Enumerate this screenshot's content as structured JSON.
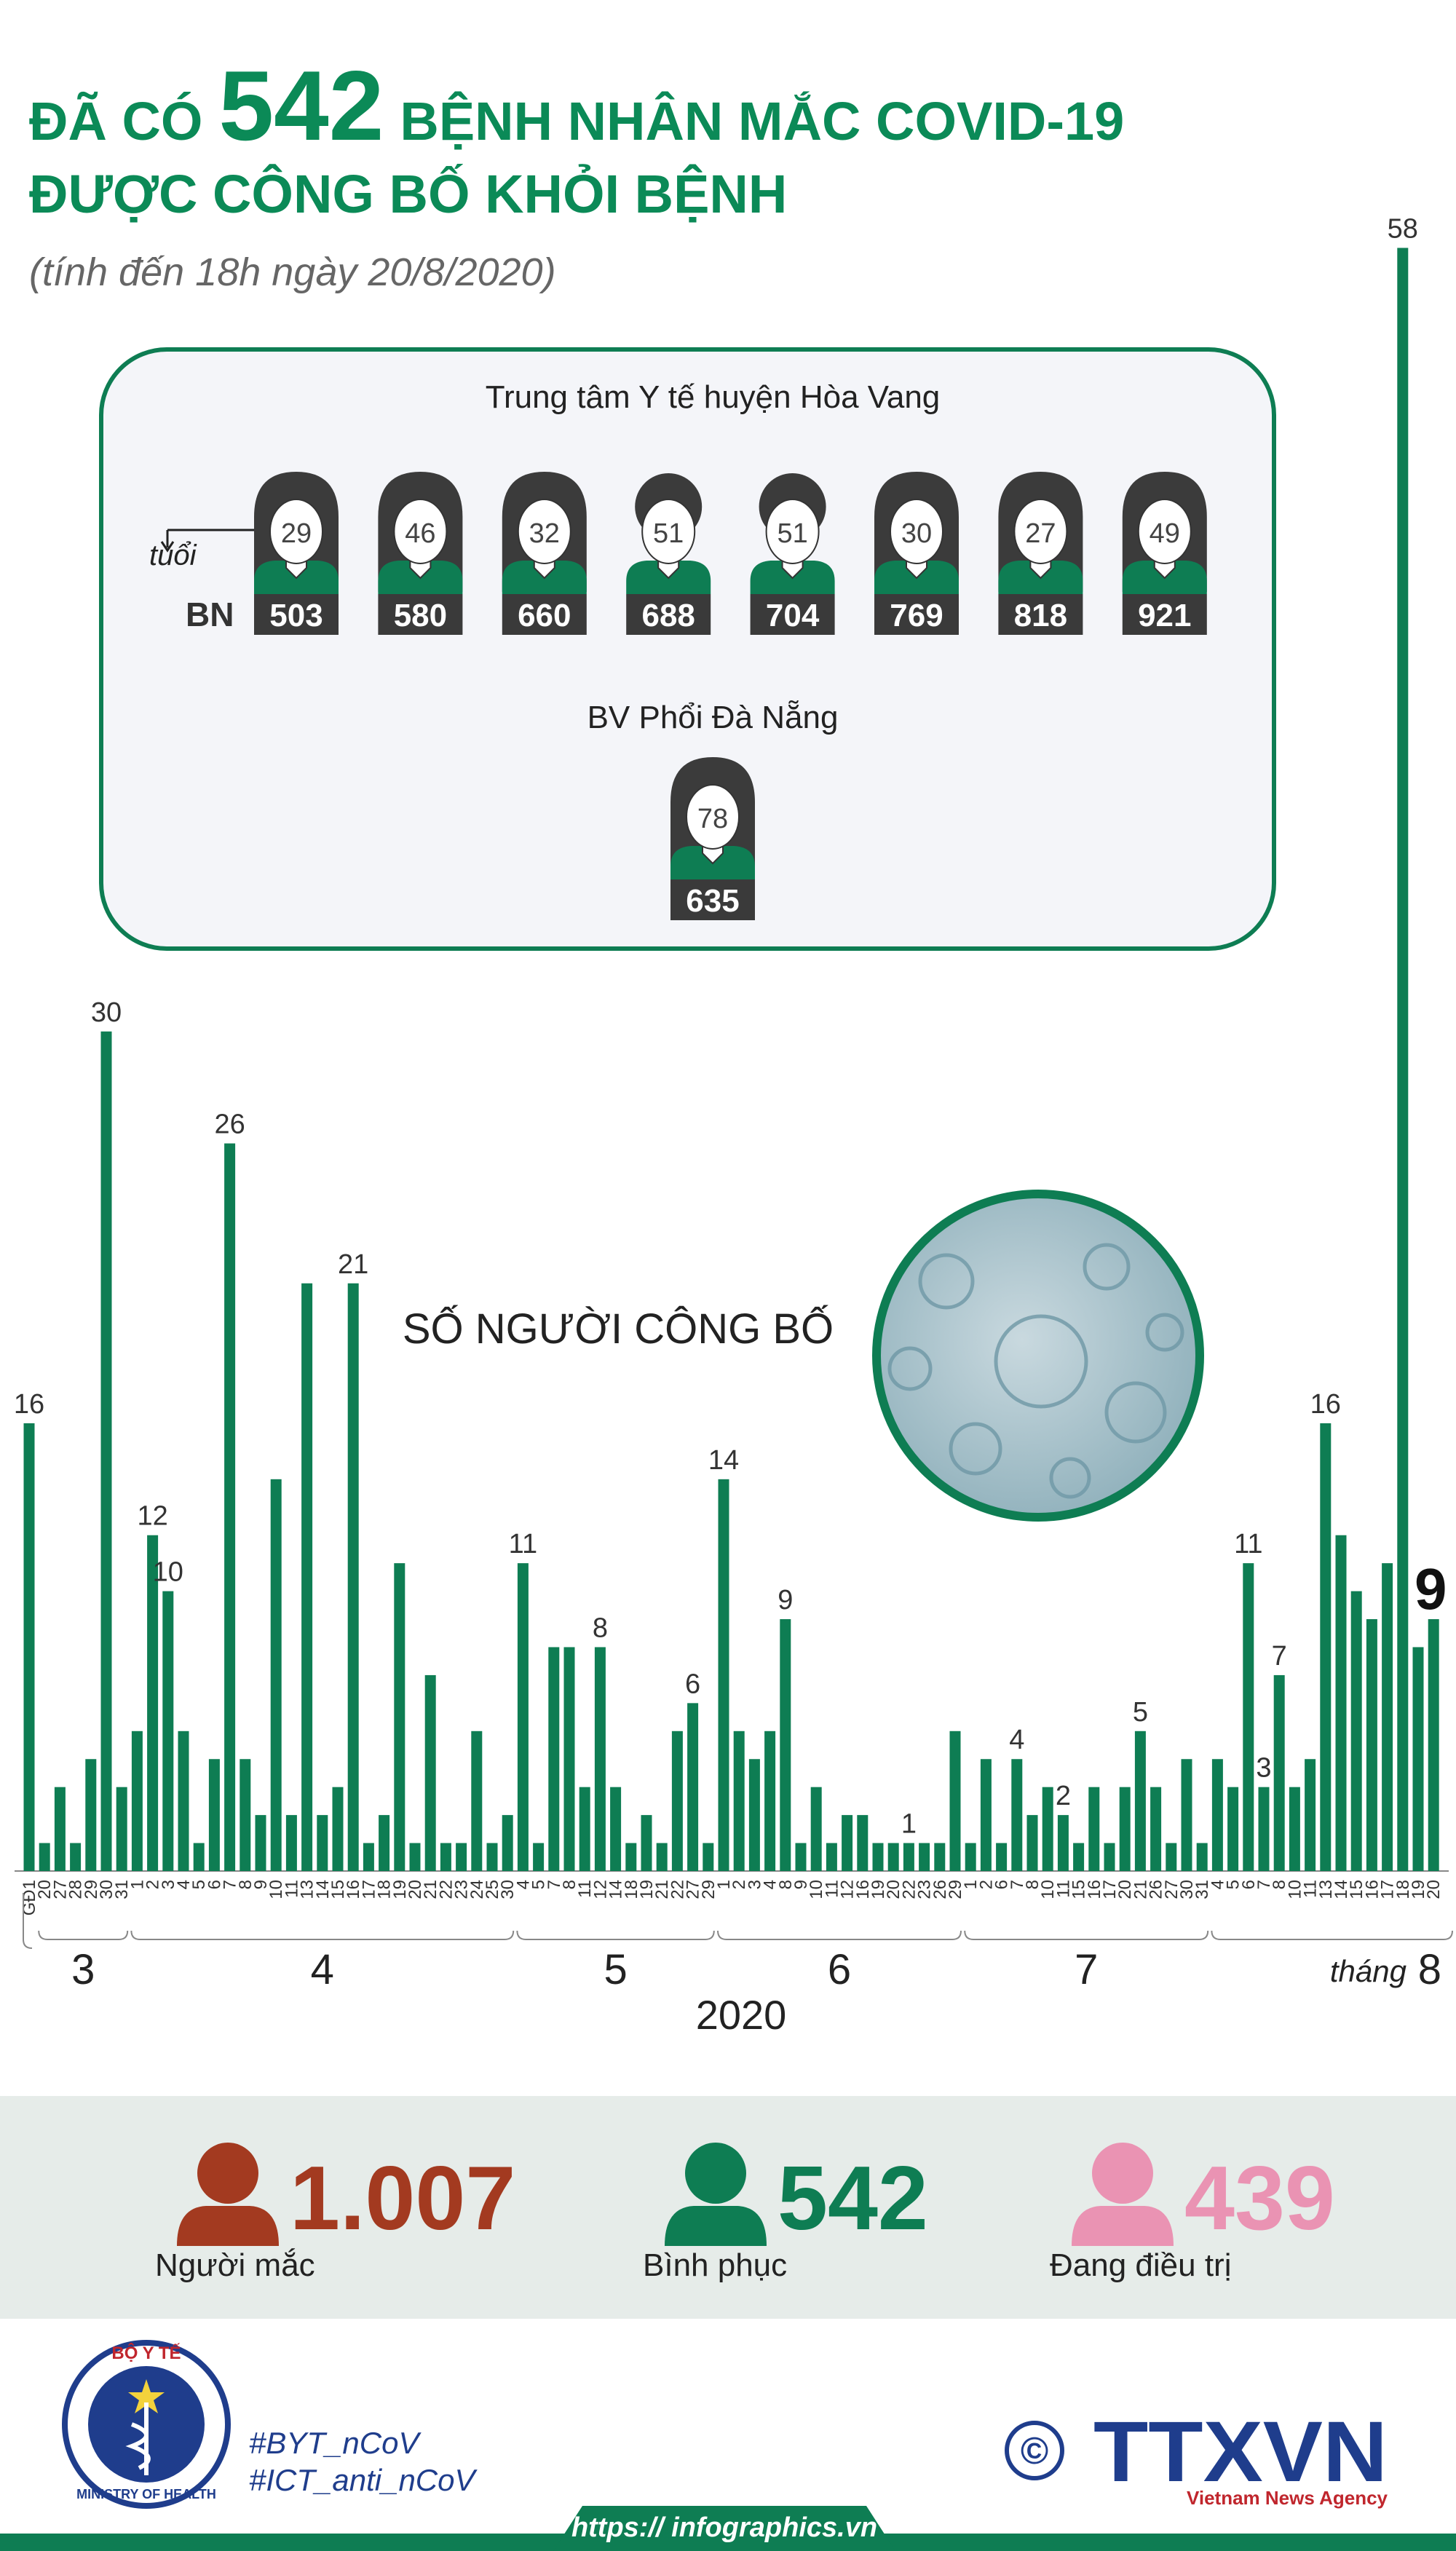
{
  "header": {
    "prefix": "ĐÃ CÓ",
    "count": "542",
    "suffix": "BỆNH NHÂN MẮC COVID-19",
    "line2": "ĐƯỢC CÔNG BỐ KHỎI BỆNH",
    "subtitle": "(tính đến 18h ngày 20/8/2020)"
  },
  "panel": {
    "age_label": "tuổi",
    "bn_label": "BN",
    "groups": [
      {
        "name": "Trung tâm Y tế huyện Hòa Vang",
        "patients": [
          {
            "age": "29",
            "bn": "503",
            "gender": "female"
          },
          {
            "age": "46",
            "bn": "580",
            "gender": "female"
          },
          {
            "age": "32",
            "bn": "660",
            "gender": "female"
          },
          {
            "age": "51",
            "bn": "688",
            "gender": "male"
          },
          {
            "age": "51",
            "bn": "704",
            "gender": "male"
          },
          {
            "age": "30",
            "bn": "769",
            "gender": "female"
          },
          {
            "age": "27",
            "bn": "818",
            "gender": "female"
          },
          {
            "age": "49",
            "bn": "921",
            "gender": "female"
          }
        ]
      },
      {
        "name": "BV Phổi Đà Nẵng",
        "patients": [
          {
            "age": "78",
            "bn": "635",
            "gender": "female"
          }
        ]
      }
    ]
  },
  "chart_data": {
    "type": "bar",
    "title": "SỐ NGƯỜI CÔNG BỐ",
    "color": "#0e7d53",
    "categories": [
      "GĐ1",
      "20",
      "27",
      "28",
      "29",
      "30",
      "31",
      "1",
      "2",
      "3",
      "4",
      "5",
      "6",
      "7",
      "8",
      "9",
      "10",
      "11",
      "13",
      "14",
      "15",
      "16",
      "17",
      "18",
      "19",
      "20",
      "21",
      "22",
      "23",
      "24",
      "25",
      "30",
      "4",
      "5",
      "7",
      "8",
      "11",
      "12",
      "14",
      "18",
      "19",
      "21",
      "22",
      "27",
      "29",
      "1",
      "2",
      "3",
      "4",
      "8",
      "9",
      "10",
      "11",
      "12",
      "16",
      "19",
      "20",
      "22",
      "23",
      "26",
      "29",
      "1",
      "2",
      "6",
      "7",
      "8",
      "10",
      "11",
      "15",
      "16",
      "17",
      "20",
      "21",
      "26",
      "27",
      "30",
      "31",
      "4",
      "5",
      "6",
      "7",
      "8",
      "10",
      "11",
      "13",
      "14",
      "15",
      "16",
      "17",
      "18",
      "19",
      "20"
    ],
    "values": [
      16,
      1,
      3,
      1,
      4,
      30,
      3,
      5,
      12,
      10,
      5,
      1,
      4,
      26,
      4,
      2,
      14,
      2,
      21,
      2,
      3,
      21,
      1,
      2,
      11,
      1,
      7,
      1,
      1,
      5,
      1,
      2,
      11,
      1,
      8,
      8,
      3,
      8,
      3,
      1,
      2,
      1,
      5,
      6,
      1,
      14,
      5,
      4,
      5,
      9,
      1,
      3,
      1,
      2,
      2,
      1,
      1,
      1,
      1,
      1,
      5,
      1,
      4,
      1,
      4,
      2,
      3,
      2,
      1,
      3,
      1,
      3,
      5,
      3,
      1,
      4,
      1,
      4,
      3,
      11,
      3,
      7,
      3,
      4,
      16,
      12,
      10,
      9,
      11,
      58,
      8,
      9
    ],
    "value_labels": [
      "16",
      null,
      null,
      null,
      null,
      "30",
      null,
      null,
      "12",
      "10",
      null,
      null,
      null,
      "26",
      null,
      null,
      null,
      null,
      null,
      null,
      null,
      "21",
      null,
      null,
      null,
      null,
      null,
      null,
      null,
      null,
      null,
      null,
      "11",
      null,
      null,
      null,
      null,
      "8",
      null,
      null,
      null,
      null,
      null,
      "6",
      null,
      "14",
      null,
      null,
      null,
      "9",
      null,
      null,
      null,
      null,
      null,
      null,
      null,
      "1",
      null,
      null,
      null,
      null,
      null,
      null,
      "4",
      null,
      null,
      "2",
      null,
      null,
      null,
      null,
      "5",
      null,
      null,
      null,
      null,
      null,
      null,
      "11",
      "3",
      "7",
      null,
      null,
      "16",
      null,
      null,
      null,
      null,
      "58",
      null,
      "9"
    ],
    "months": [
      "3",
      "4",
      "5",
      "6",
      "7",
      "8"
    ],
    "month_word": "tháng",
    "year": "2020"
  },
  "stats": [
    {
      "value": "1.007",
      "label": "Người mắc",
      "color": "#a33a20"
    },
    {
      "value": "542",
      "label": "Bình phục",
      "color": "#0e7d53"
    },
    {
      "value": "439",
      "label": "Đang điều trị",
      "color": "#ea93b3"
    }
  ],
  "footer": {
    "ministry_top": "BỘ Y TẾ",
    "ministry_bottom": "MINISTRY OF HEALTH",
    "hashtags": [
      "#BYT_nCoV",
      "#ICT_anti_nCoV"
    ],
    "copyright": "©",
    "agency": "TTXVN",
    "agency_en": "Vietnam News Agency",
    "url": "https:// infographics.vn"
  }
}
